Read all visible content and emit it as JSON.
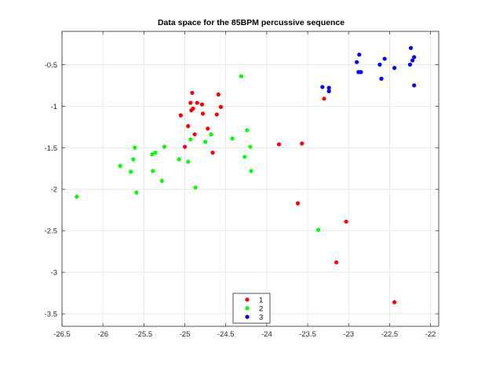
{
  "chart_data": {
    "type": "scatter",
    "title": "Data space for the 85BPM percussive sequence",
    "xlabel": "",
    "ylabel": "",
    "xlim": [
      -26.5,
      -21.9
    ],
    "ylim": [
      -3.65,
      -0.1
    ],
    "xticks": [
      -26.5,
      -26,
      -25.5,
      -25,
      -24.5,
      -24,
      -23.5,
      -23,
      -22.5,
      -22
    ],
    "xtick_labels": [
      "-26.5",
      "-26",
      "-25.5",
      "-25",
      "-24.5",
      "-24",
      "-23.5",
      "-23",
      "-22.5",
      "-22"
    ],
    "yticks": [
      -3.5,
      -3,
      -2.5,
      -2,
      -1.5,
      -1,
      -0.5
    ],
    "ytick_labels": [
      "-3.5",
      "-3",
      "-2.5",
      "-2",
      "-1.5",
      "-1",
      "-0.5"
    ],
    "grid": true,
    "legend_position": "bottom-center",
    "series": [
      {
        "name": "1",
        "color": "#ff0000",
        "points": [
          [
            -24.91,
            -0.84
          ],
          [
            -24.93,
            -0.96
          ],
          [
            -24.85,
            -0.96
          ],
          [
            -24.79,
            -0.98
          ],
          [
            -24.9,
            -1.03
          ],
          [
            -24.92,
            -1.05
          ],
          [
            -24.59,
            -0.86
          ],
          [
            -24.56,
            -1.01
          ],
          [
            -25.05,
            -1.11
          ],
          [
            -24.78,
            -1.09
          ],
          [
            -24.61,
            -1.1
          ],
          [
            -24.96,
            -1.24
          ],
          [
            -24.72,
            -1.27
          ],
          [
            -24.88,
            -1.34
          ],
          [
            -25.0,
            -1.49
          ],
          [
            -24.66,
            -1.56
          ],
          [
            -23.85,
            -1.46
          ],
          [
            -23.57,
            -1.45
          ],
          [
            -23.3,
            -0.91
          ],
          [
            -23.62,
            -2.17
          ],
          [
            -23.03,
            -2.39
          ],
          [
            -23.15,
            -2.88
          ],
          [
            -22.44,
            -3.36
          ]
        ]
      },
      {
        "name": "2",
        "color": "#00ff00",
        "points": [
          [
            -24.31,
            -0.64
          ],
          [
            -24.24,
            -1.29
          ],
          [
            -24.42,
            -1.39
          ],
          [
            -24.68,
            -1.34
          ],
          [
            -24.75,
            -1.43
          ],
          [
            -24.93,
            -1.4
          ],
          [
            -24.2,
            -1.49
          ],
          [
            -24.27,
            -1.61
          ],
          [
            -24.19,
            -1.78
          ],
          [
            -25.07,
            -1.64
          ],
          [
            -24.96,
            -1.67
          ],
          [
            -25.25,
            -1.49
          ],
          [
            -25.36,
            -1.56
          ],
          [
            -25.4,
            -1.58
          ],
          [
            -25.61,
            -1.5
          ],
          [
            -25.63,
            -1.64
          ],
          [
            -25.79,
            -1.72
          ],
          [
            -25.66,
            -1.79
          ],
          [
            -25.39,
            -1.78
          ],
          [
            -25.28,
            -1.9
          ],
          [
            -25.59,
            -2.04
          ],
          [
            -24.87,
            -1.98
          ],
          [
            -26.32,
            -2.09
          ],
          [
            -23.37,
            -2.49
          ]
        ]
      },
      {
        "name": "3",
        "color": "#0000ff",
        "points": [
          [
            -23.32,
            -0.77
          ],
          [
            -23.24,
            -0.78
          ],
          [
            -23.24,
            -0.82
          ],
          [
            -22.87,
            -0.38
          ],
          [
            -22.9,
            -0.47
          ],
          [
            -22.88,
            -0.59
          ],
          [
            -22.85,
            -0.59
          ],
          [
            -22.56,
            -0.43
          ],
          [
            -22.62,
            -0.5
          ],
          [
            -22.6,
            -0.67
          ],
          [
            -22.44,
            -0.54
          ],
          [
            -22.24,
            -0.3
          ],
          [
            -22.2,
            -0.41
          ],
          [
            -22.22,
            -0.45
          ],
          [
            -22.25,
            -0.5
          ],
          [
            -22.2,
            -0.75
          ]
        ]
      }
    ]
  }
}
